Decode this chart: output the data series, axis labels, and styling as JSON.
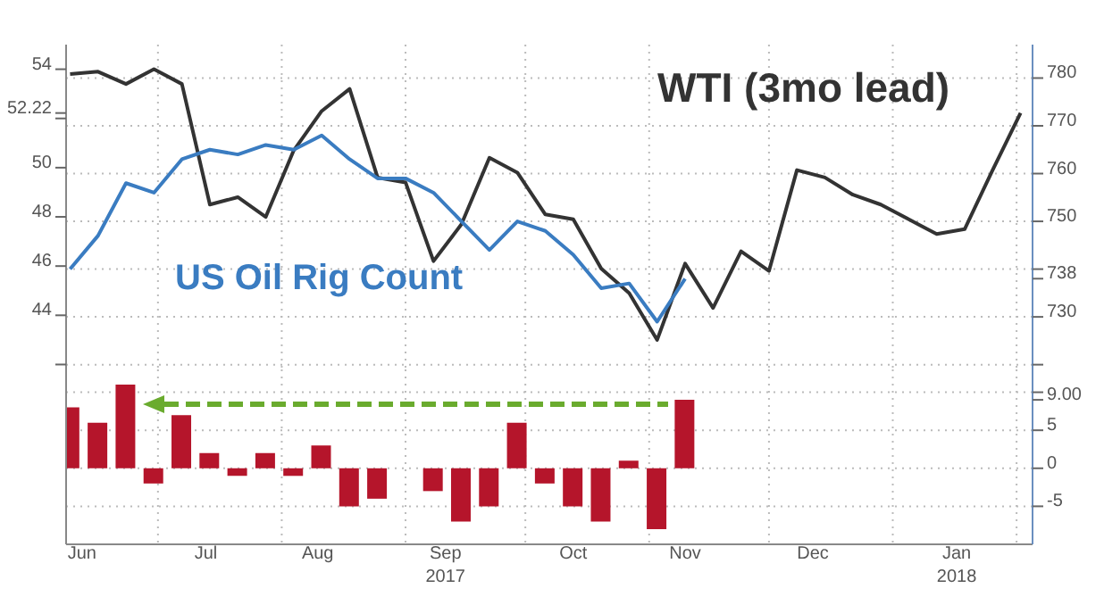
{
  "chart_data": [
    {
      "type": "line",
      "tick_labels": "y",
      "grid": true,
      "xlim": [
        "2017-06-08",
        "2018-02-05"
      ],
      "xticks": [
        {
          "value": "2017-07-01",
          "label": null
        },
        {
          "value": "2017-08-01",
          "label": null
        },
        {
          "value": "2017-09-01",
          "label": null
        },
        {
          "value": "2017-10-01",
          "label": null
        },
        {
          "value": "2017-11-01",
          "label": null
        },
        {
          "value": "2017-12-01",
          "label": null
        },
        {
          "value": "2018-01-01",
          "label": null
        },
        {
          "value": "2018-02-01",
          "label": null
        }
      ],
      "ylim": [
        41.8,
        55
      ],
      "yticks": [
        54,
        {
          "value": 52,
          "label": null
        },
        50,
        48,
        46,
        44,
        {
          "value": 42,
          "label": null
        },
        {
          "value": 52.22,
          "label": "52.22"
        }
      ],
      "y2lim": [
        719,
        787
      ],
      "y2ticks": [
        780,
        770,
        760,
        750,
        {
          "value": 740,
          "label": null
        },
        730,
        {
          "value": 720,
          "label": null
        },
        {
          "value": 738,
          "label": "738"
        }
      ],
      "series": [
        {
          "name": "WTI (3mo lead)",
          "color": "#333333",
          "axis": "y",
          "x": [
            "2017-06-09",
            "2017-06-16",
            "2017-06-23",
            "2017-06-30",
            "2017-07-07",
            "2017-07-14",
            "2017-07-21",
            "2017-07-28",
            "2017-08-04",
            "2017-08-11",
            "2017-08-18",
            "2017-08-25",
            "2017-09-01",
            "2017-09-08",
            "2017-09-15",
            "2017-09-22",
            "2017-09-29",
            "2017-10-06",
            "2017-10-13",
            "2017-10-20",
            "2017-10-27",
            "2017-11-03",
            "2017-11-10",
            "2017-11-17",
            "2017-11-24",
            "2017-12-01",
            "2017-12-08",
            "2017-12-15",
            "2017-12-22",
            "2017-12-29",
            "2018-01-05",
            "2018-01-12",
            "2018-01-19",
            "2018-01-26",
            "2018-02-02"
          ],
          "values": [
            53.8,
            53.9,
            53.4,
            54.0,
            53.4,
            48.5,
            48.8,
            48.0,
            50.7,
            52.3,
            53.2,
            49.6,
            49.4,
            46.2,
            47.7,
            50.4,
            49.8,
            48.1,
            47.9,
            45.9,
            44.9,
            43.0,
            46.1,
            44.3,
            46.6,
            45.8,
            49.9,
            49.6,
            48.9,
            48.5,
            47.9,
            47.3,
            47.5,
            49.9,
            52.22
          ]
        },
        {
          "name": "US Oil Rig Count",
          "color": "#3a7cc1",
          "axis": "y2",
          "x": [
            "2017-06-09",
            "2017-06-16",
            "2017-06-23",
            "2017-06-30",
            "2017-07-07",
            "2017-07-14",
            "2017-07-21",
            "2017-07-28",
            "2017-08-04",
            "2017-08-11",
            "2017-08-18",
            "2017-08-25",
            "2017-09-01",
            "2017-09-08",
            "2017-09-15",
            "2017-09-22",
            "2017-09-29",
            "2017-10-06",
            "2017-10-13",
            "2017-10-20",
            "2017-10-27",
            "2017-11-03",
            "2017-11-10"
          ],
          "values": [
            740,
            747,
            758,
            756,
            763,
            765,
            764,
            766,
            765,
            768,
            763,
            759,
            759,
            756,
            750,
            744,
            750,
            748,
            743,
            736,
            737,
            729,
            738
          ]
        }
      ]
    },
    {
      "type": "bar",
      "grid": true,
      "xlim": [
        "2017-06-08",
        "2018-02-05"
      ],
      "xticks": [
        {
          "value": "2017-06-12",
          "label": "Jun"
        },
        {
          "value": "2017-07-13",
          "label": "Jul"
        },
        {
          "value": "2017-08-10",
          "label": "Aug"
        },
        {
          "value": "2017-09-11",
          "label": "Sep\n2017"
        },
        {
          "value": "2017-10-13",
          "label": "Oct"
        },
        {
          "value": "2017-11-10",
          "label": "Nov"
        },
        {
          "value": "2017-12-12",
          "label": "Dec"
        },
        {
          "value": "2018-01-17",
          "label": "Jan\n2018"
        },
        {
          "value": "2017-07-01",
          "label": null
        },
        {
          "value": "2017-08-01",
          "label": null
        },
        {
          "value": "2017-09-01",
          "label": null
        },
        {
          "value": "2017-10-01",
          "label": null
        },
        {
          "value": "2017-11-01",
          "label": null
        },
        {
          "value": "2017-12-01",
          "label": null
        },
        {
          "value": "2018-01-01",
          "label": null
        },
        {
          "value": "2018-02-01",
          "label": null
        }
      ],
      "y2lim": [
        -10,
        13
      ],
      "y2ticks": [
        {
          "value": 10,
          "label": null
        },
        5,
        0,
        -5,
        {
          "value": 9,
          "label": "9.00"
        }
      ],
      "series": [
        {
          "color": "#b5152b",
          "axis": "y2",
          "x": [
            "2017-06-09",
            "2017-06-16",
            "2017-06-23",
            "2017-06-30",
            "2017-07-07",
            "2017-07-14",
            "2017-07-21",
            "2017-07-28",
            "2017-08-04",
            "2017-08-11",
            "2017-08-18",
            "2017-08-25",
            "2017-09-01",
            "2017-09-08",
            "2017-09-15",
            "2017-09-22",
            "2017-09-29",
            "2017-10-06",
            "2017-10-13",
            "2017-10-20",
            "2017-10-27",
            "2017-11-03",
            "2017-11-10"
          ],
          "values": [
            8,
            6,
            11,
            -2,
            7,
            2,
            -1,
            2,
            -1,
            3,
            -5,
            -4,
            0,
            -3,
            -7,
            -5,
            6,
            -2,
            -5,
            -7,
            1,
            -8,
            9
          ]
        }
      ]
    }
  ]
}
